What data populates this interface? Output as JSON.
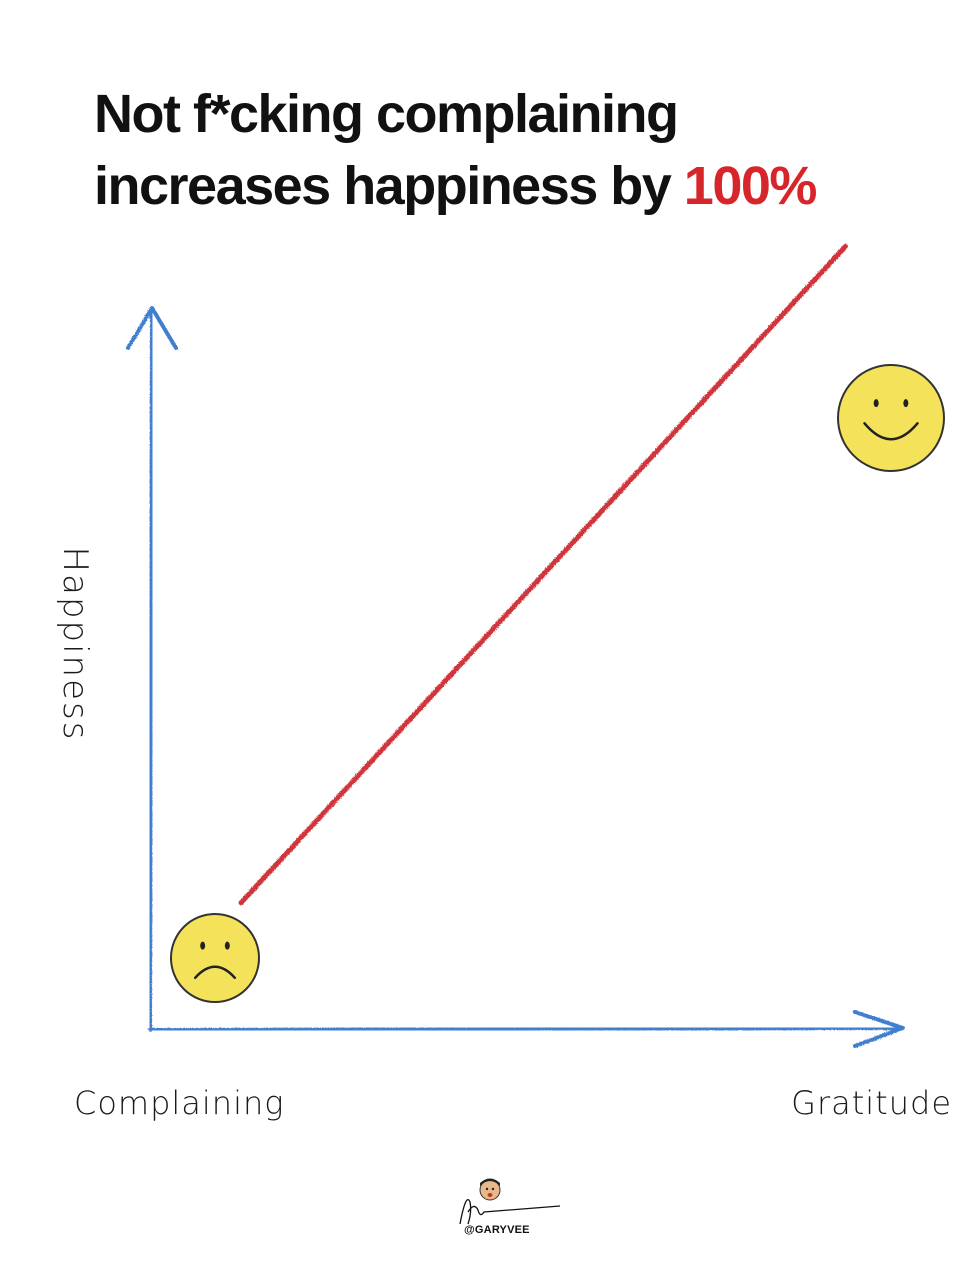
{
  "title": {
    "line1": "Not f*cking complaining",
    "line2_prefix": "increases happiness by ",
    "line2_highlight": "100%"
  },
  "chart_data": {
    "type": "line",
    "title": "Not f*cking complaining increases happiness by 100%",
    "xlabel": "",
    "ylabel": "Happiness",
    "x_tick_labels": {
      "start": "Complaining",
      "end": "Gratitude"
    },
    "x_ticks": 7,
    "y_ticks": 8,
    "grid": false,
    "series": [
      {
        "x": [
          1,
          7.5
        ],
        "y": [
          1.2,
          7.7
        ],
        "color": "#d0343a"
      }
    ],
    "markers": [
      {
        "face": "sad",
        "x": 0.5,
        "y": 0.5
      },
      {
        "face": "happy",
        "x": 7.8,
        "y": 8.2
      }
    ],
    "axis_color": "#3f7fd0",
    "face_color": "#f4e35a"
  },
  "credit": {
    "handle": "@GARYVEE"
  }
}
